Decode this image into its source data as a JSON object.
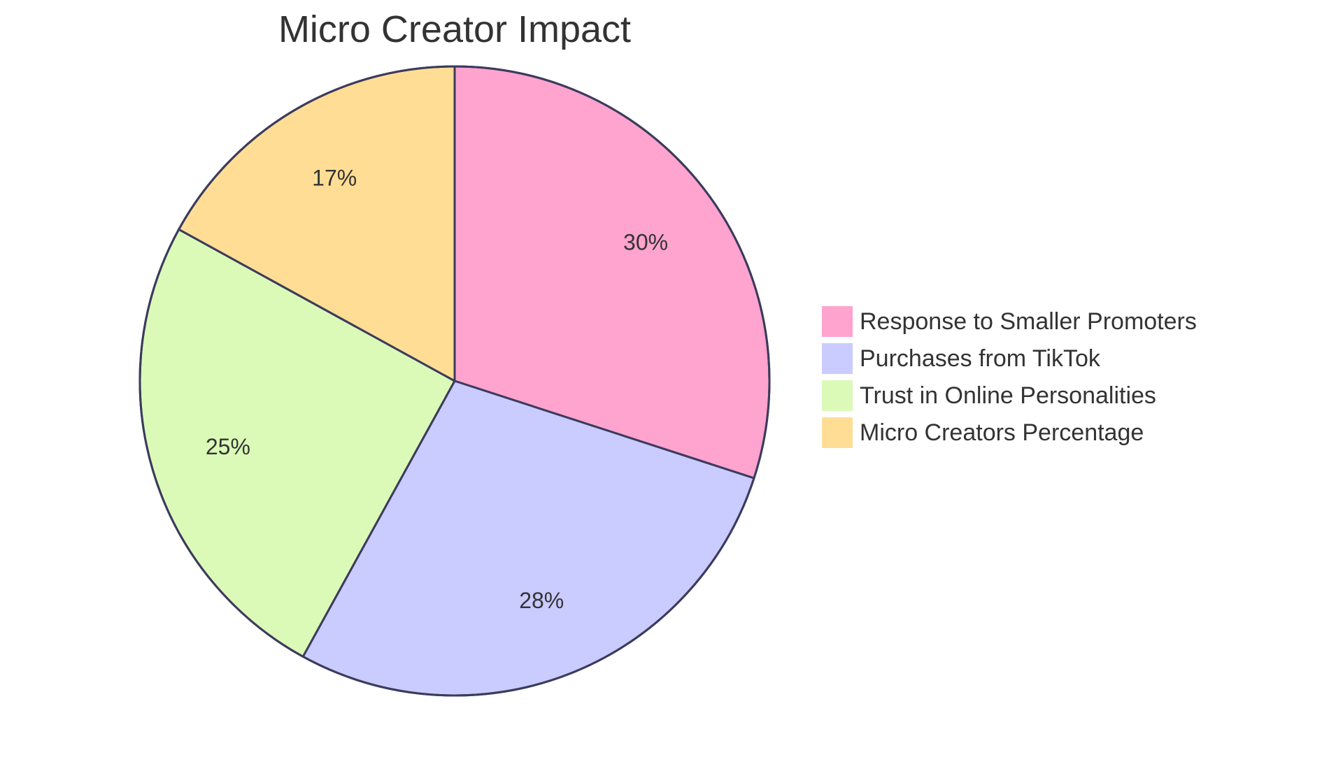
{
  "chart_data": {
    "type": "pie",
    "title": "Micro Creator Impact",
    "slices": [
      {
        "label": "Response to Smaller Promoters",
        "value": 30,
        "display": "30%",
        "color": "#FFA3CF"
      },
      {
        "label": "Purchases from TikTok",
        "value": 28,
        "display": "28%",
        "color": "#CACBFF"
      },
      {
        "label": "Trust in Online Personalities",
        "value": 25,
        "display": "25%",
        "color": "#DBFAB8"
      },
      {
        "label": "Micro Creators Percentage",
        "value": 17,
        "display": "17%",
        "color": "#FFDD95"
      }
    ],
    "legend_position": "right",
    "outline_color": "#3B3B5C"
  }
}
